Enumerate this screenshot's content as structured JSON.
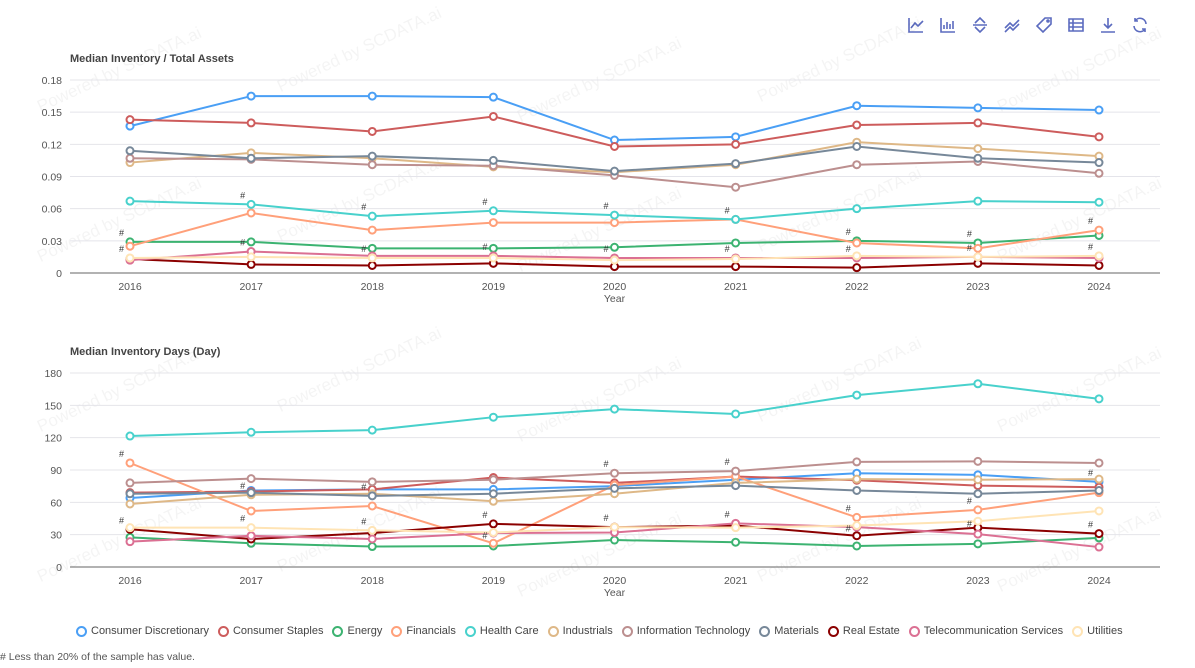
{
  "toolbar": {
    "icons": [
      "line-chart-icon",
      "bar-chart-icon",
      "sort-icon",
      "trend-icon",
      "tag-icon",
      "table-icon",
      "download-icon",
      "refresh-icon"
    ]
  },
  "watermark": "Powered by SCDATA.ai",
  "footnote": "# Less than 20% of the sample has value.",
  "hash_symbol": "#",
  "series_meta": [
    {
      "name": "Consumer Discretionary",
      "color": "#4a9ff5"
    },
    {
      "name": "Consumer Staples",
      "color": "#cd5c5c"
    },
    {
      "name": "Energy",
      "color": "#3cb371"
    },
    {
      "name": "Financials",
      "color": "#ffa07a"
    },
    {
      "name": "Health Care",
      "color": "#48d1cc"
    },
    {
      "name": "Industrials",
      "color": "#deb887"
    },
    {
      "name": "Information Technology",
      "color": "#bc8f8f"
    },
    {
      "name": "Materials",
      "color": "#778899"
    },
    {
      "name": "Real Estate",
      "color": "#8b0000"
    },
    {
      "name": "Telecommunication Services",
      "color": "#db7093"
    },
    {
      "name": "Utilities",
      "color": "#ffe4b5"
    }
  ],
  "chart_data": [
    {
      "type": "line",
      "title": "Median Inventory / Total Assets",
      "xlabel": "Year",
      "ylabel": "",
      "x": [
        "2016",
        "2017",
        "2018",
        "2019",
        "2020",
        "2021",
        "2022",
        "2023",
        "2024"
      ],
      "ylim": [
        0,
        0.18
      ],
      "yticks": [
        "0",
        "0.03",
        "0.06",
        "0.09",
        "0.12",
        "0.15",
        "0.18"
      ],
      "grid": true,
      "legend": "bottom",
      "series": [
        {
          "name": "Consumer Discretionary",
          "values": [
            0.137,
            0.165,
            0.165,
            0.164,
            0.124,
            0.127,
            0.156,
            0.154,
            0.152
          ],
          "flagged": []
        },
        {
          "name": "Consumer Staples",
          "values": [
            0.143,
            0.14,
            0.132,
            0.146,
            0.118,
            0.12,
            0.138,
            0.14,
            0.127
          ],
          "flagged": []
        },
        {
          "name": "Energy",
          "values": [
            0.029,
            0.029,
            0.023,
            0.023,
            0.024,
            0.028,
            0.03,
            0.028,
            0.035
          ],
          "flagged": [
            "2016",
            "2022",
            "2023"
          ]
        },
        {
          "name": "Financials",
          "values": [
            0.025,
            0.056,
            0.04,
            0.047,
            0.047,
            0.05,
            0.028,
            0.023,
            0.04
          ],
          "flagged": [
            "2016",
            "2024"
          ]
        },
        {
          "name": "Health Care",
          "values": [
            0.067,
            0.064,
            0.053,
            0.058,
            0.054,
            0.05,
            0.06,
            0.067,
            0.066
          ],
          "flagged": [
            "2017",
            "2018",
            "2019",
            "2020",
            "2021"
          ]
        },
        {
          "name": "Industrials",
          "values": [
            0.103,
            0.112,
            0.107,
            0.099,
            0.094,
            0.101,
            0.122,
            0.116,
            0.109
          ],
          "flagged": []
        },
        {
          "name": "Information Technology",
          "values": [
            0.107,
            0.106,
            0.101,
            0.1,
            0.091,
            0.08,
            0.101,
            0.104,
            0.093
          ],
          "flagged": []
        },
        {
          "name": "Materials",
          "values": [
            0.114,
            0.107,
            0.109,
            0.105,
            0.095,
            0.102,
            0.118,
            0.107,
            0.103
          ],
          "flagged": []
        },
        {
          "name": "Real Estate",
          "values": [
            0.013,
            0.008,
            0.007,
            0.009,
            0.006,
            0.006,
            0.005,
            0.009,
            0.007
          ],
          "flagged": []
        },
        {
          "name": "Telecommunication Services",
          "values": [
            0.012,
            0.02,
            0.016,
            0.016,
            0.014,
            0.014,
            0.014,
            0.015,
            0.014
          ],
          "flagged": [
            "2017",
            "2019",
            "2020",
            "2021",
            "2022"
          ]
        },
        {
          "name": "Utilities",
          "values": [
            0.014,
            0.015,
            0.014,
            0.014,
            0.012,
            0.013,
            0.016,
            0.015,
            0.016
          ],
          "flagged": [
            "2018",
            "2023",
            "2024"
          ]
        }
      ]
    },
    {
      "type": "line",
      "title": "Median Inventory Days (Day)",
      "xlabel": "Year",
      "ylabel": "",
      "x": [
        "2016",
        "2017",
        "2018",
        "2019",
        "2020",
        "2021",
        "2022",
        "2023",
        "2024"
      ],
      "ylim": [
        0,
        180
      ],
      "yticks": [
        "0",
        "30",
        "60",
        "90",
        "120",
        "150",
        "180"
      ],
      "grid": true,
      "legend": "bottom",
      "series": [
        {
          "name": "Consumer Discretionary",
          "values": [
            64,
            71,
            72,
            72,
            75,
            81,
            87,
            85.5,
            79
          ],
          "flagged": [
            "2024"
          ]
        },
        {
          "name": "Consumer Staples",
          "values": [
            69,
            70,
            72,
            83,
            78,
            84,
            80.5,
            75.5,
            74
          ],
          "flagged": []
        },
        {
          "name": "Energy",
          "values": [
            27.5,
            22,
            19,
            19.5,
            25,
            23,
            19.5,
            21.5,
            27
          ],
          "flagged": []
        },
        {
          "name": "Financials",
          "values": [
            96.5,
            52,
            56.6,
            22,
            76,
            84,
            46,
            53,
            69
          ],
          "flagged": [
            "2016",
            "2022",
            "2023"
          ]
        },
        {
          "name": "Health Care",
          "values": [
            121.5,
            125,
            127,
            139,
            146.5,
            142,
            159.5,
            170,
            156
          ],
          "flagged": []
        },
        {
          "name": "Industrials",
          "values": [
            58.5,
            67,
            68,
            61,
            68,
            78,
            81.5,
            81,
            81.5
          ],
          "flagged": [
            "2017"
          ]
        },
        {
          "name": "Information Technology",
          "values": [
            78,
            82,
            79,
            81,
            87,
            89,
            97.5,
            98,
            96.5
          ],
          "flagged": [
            "2020",
            "2021"
          ]
        },
        {
          "name": "Materials",
          "values": [
            68,
            69,
            66,
            68,
            73,
            75.5,
            71,
            68,
            71
          ],
          "flagged": [
            "2018"
          ]
        },
        {
          "name": "Real Estate",
          "values": [
            35,
            26,
            31.5,
            40,
            37,
            38.5,
            29,
            36.5,
            31
          ],
          "flagged": [
            "2016",
            "2019",
            "2020",
            "2024"
          ]
        },
        {
          "name": "Telecommunication Services",
          "values": [
            23.5,
            29,
            26,
            31.5,
            32,
            40.5,
            37,
            30.5,
            18.5
          ],
          "flagged": [
            "2021"
          ]
        },
        {
          "name": "Utilities",
          "values": [
            36.5,
            36.5,
            34,
            32,
            37,
            36.5,
            38.5,
            42.5,
            52
          ],
          "flagged": [
            "2017",
            "2018",
            "2019",
            "2022",
            "2023"
          ]
        }
      ]
    }
  ]
}
